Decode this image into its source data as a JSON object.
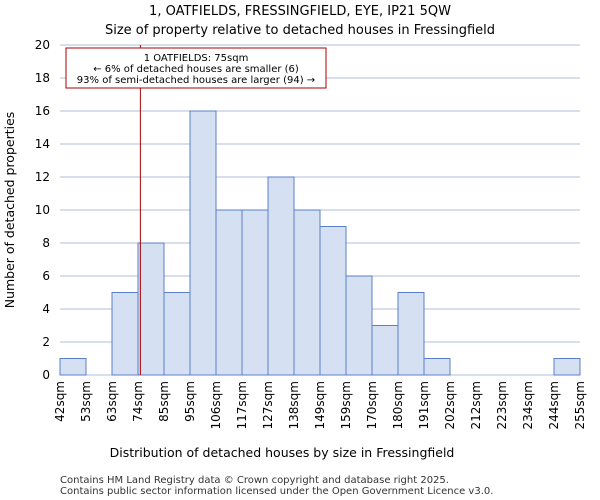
{
  "chart_data": {
    "type": "bar",
    "title": "1, OATFIELDS, FRESSINGFIELD, EYE, IP21 5QW",
    "subtitle": "Size of property relative to detached houses in Fressingfield",
    "xlabel": "Distribution of detached houses by size in Fressingfield",
    "ylabel": "Number of detached properties",
    "ylim": [
      0,
      20
    ],
    "yticks": [
      0,
      2,
      4,
      6,
      8,
      10,
      12,
      14,
      16,
      18,
      20
    ],
    "grid": "horizontal",
    "bin_edges_labels": [
      "42sqm",
      "53sqm",
      "63sqm",
      "74sqm",
      "85sqm",
      "95sqm",
      "106sqm",
      "117sqm",
      "127sqm",
      "138sqm",
      "149sqm",
      "159sqm",
      "170sqm",
      "180sqm",
      "191sqm",
      "202sqm",
      "212sqm",
      "223sqm",
      "234sqm",
      "244sqm",
      "255sqm"
    ],
    "values": [
      1,
      0,
      5,
      8,
      5,
      16,
      10,
      10,
      12,
      10,
      9,
      6,
      3,
      5,
      1,
      0,
      0,
      0,
      0,
      1
    ],
    "marker": {
      "value_sqm": 75,
      "color": "#aa0000"
    },
    "annotation": {
      "lines": [
        "1 OATFIELDS: 75sqm",
        "← 6% of detached houses are smaller (6)",
        "93% of semi-detached houses are larger (94) →"
      ],
      "border_color": "#aa0000"
    },
    "colors": {
      "bar_fill": "#d6e0f3",
      "bar_edge": "#5b7fc7",
      "grid": "#b0bfd8"
    }
  },
  "footer": {
    "line1": "Contains HM Land Registry data © Crown copyright and database right 2025.",
    "line2": "Contains public sector information licensed under the Open Government Licence v3.0."
  }
}
